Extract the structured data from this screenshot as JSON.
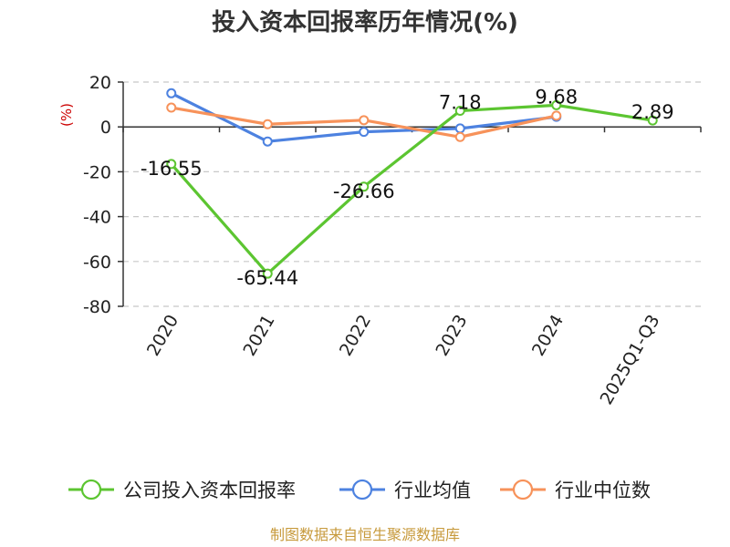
{
  "chart_data": {
    "type": "line",
    "title": "投入资本回报率历年情况(%)",
    "ylabel": "(%)",
    "categories": [
      "2020",
      "2021",
      "2022",
      "2023",
      "2024",
      "2025Q1-Q3"
    ],
    "ylim": [
      -80,
      20
    ],
    "yticks": [
      20,
      0,
      -20,
      -40,
      -60,
      -80
    ],
    "grid": true,
    "legend_position": "bottom",
    "series": [
      {
        "name": "公司投入资本回报率",
        "color": "#5cc531",
        "values": [
          -16.55,
          -65.44,
          -26.66,
          7.18,
          9.68,
          2.89
        ],
        "labels": [
          "-16.55",
          "-65.44",
          "-26.66",
          "7.18",
          "9.68",
          "2.89"
        ]
      },
      {
        "name": "行业均值",
        "color": "#4d82e0",
        "values": [
          15.0,
          -6.5,
          -2.2,
          -0.7,
          4.5,
          null
        ]
      },
      {
        "name": "行业中位数",
        "color": "#f7925a",
        "values": [
          8.6,
          1.2,
          3.0,
          -4.5,
          5.0,
          null
        ]
      }
    ]
  },
  "source": "制图数据来自恒生聚源数据库"
}
